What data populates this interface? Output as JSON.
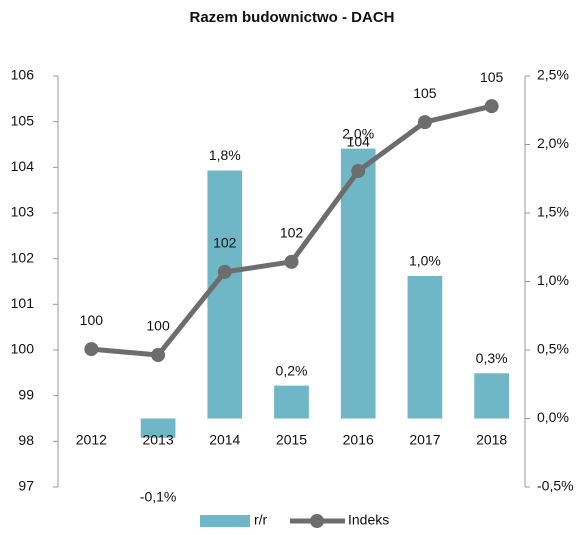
{
  "chart_data": {
    "type": "bar-line",
    "title": "Razem budownictwo - DACH",
    "categories": [
      "2012",
      "2013",
      "2014",
      "2015",
      "2016",
      "2017",
      "2018"
    ],
    "series": [
      {
        "name": "r/r",
        "type": "bar",
        "axis": "y2",
        "color": "#6fb6c6",
        "values": [
          null,
          -0.14,
          1.81,
          0.24,
          1.97,
          1.04,
          0.33
        ],
        "value_labels": [
          null,
          "-0,1%",
          "1,8%",
          "0,2%",
          "2,0%",
          "1,0%",
          "0,3%"
        ]
      },
      {
        "name": "Indeks",
        "type": "line",
        "axis": "y",
        "color": "#6d6d6d",
        "values": [
          100.02,
          99.89,
          101.71,
          101.93,
          103.92,
          104.99,
          105.34
        ],
        "value_labels": [
          "100",
          "100",
          "102",
          "102",
          "104",
          "105",
          "105"
        ]
      }
    ],
    "ylim": [
      97,
      106
    ],
    "yticks": [
      97,
      98,
      99,
      100,
      101,
      102,
      103,
      104,
      105,
      106
    ],
    "y2lim": [
      -0.5,
      2.5
    ],
    "y2ticks": [
      {
        "value": -0.5,
        "label": "-0,5%"
      },
      {
        "value": 0,
        "label": "0,0%"
      },
      {
        "value": 0.5,
        "label": "0,5%"
      },
      {
        "value": 1,
        "label": "1,0%"
      },
      {
        "value": 1.5,
        "label": "1,5%"
      },
      {
        "value": 2,
        "label": "2,0%"
      },
      {
        "value": 2.5,
        "label": "2,5%"
      }
    ],
    "grid": false,
    "legend": "bottom"
  }
}
